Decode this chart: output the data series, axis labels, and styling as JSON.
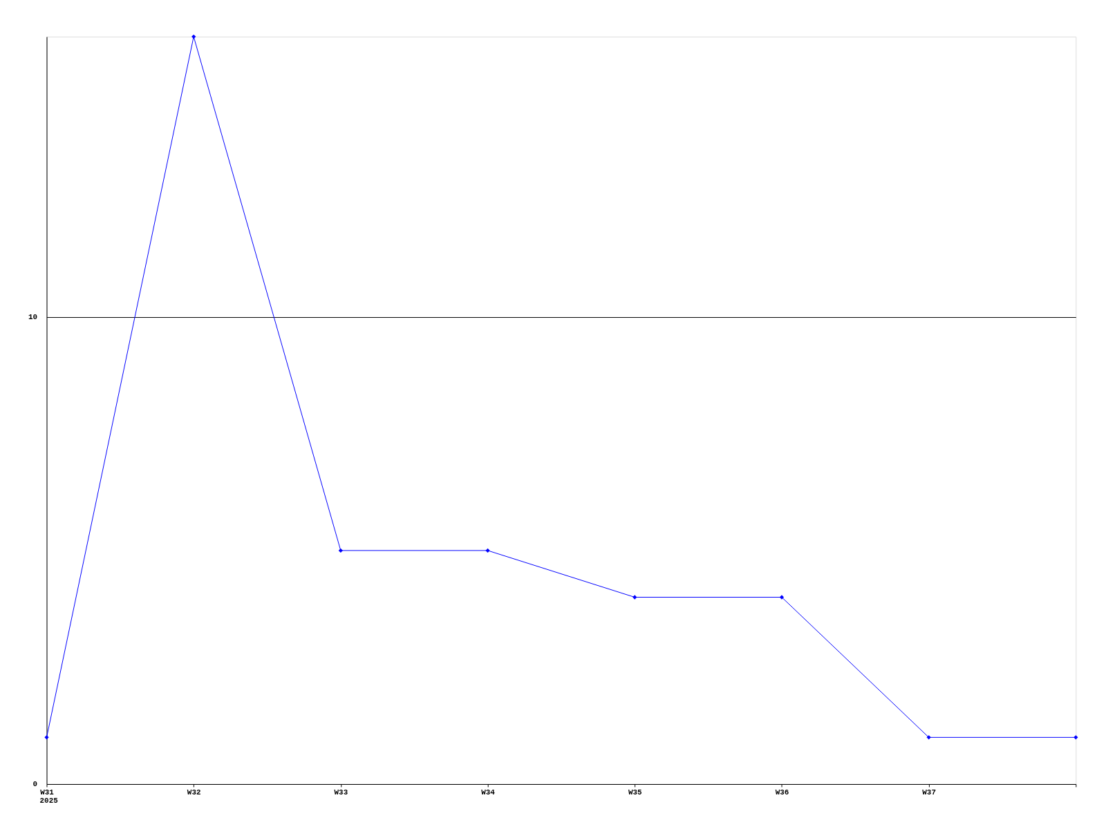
{
  "chart_data": {
    "type": "line",
    "categories": [
      "W31",
      "W32",
      "W33",
      "W34",
      "W35",
      "W36",
      "W37",
      null
    ],
    "series": [
      {
        "color": "#0000ff",
        "values": [
          1,
          16,
          5,
          5,
          4,
          4,
          1,
          1
        ]
      }
    ],
    "ylim": [
      0,
      16
    ],
    "yticks": [
      0,
      10
    ],
    "grid": "y",
    "marker": "diamond",
    "line_style": "solid",
    "annotations": [
      "2025"
    ]
  }
}
